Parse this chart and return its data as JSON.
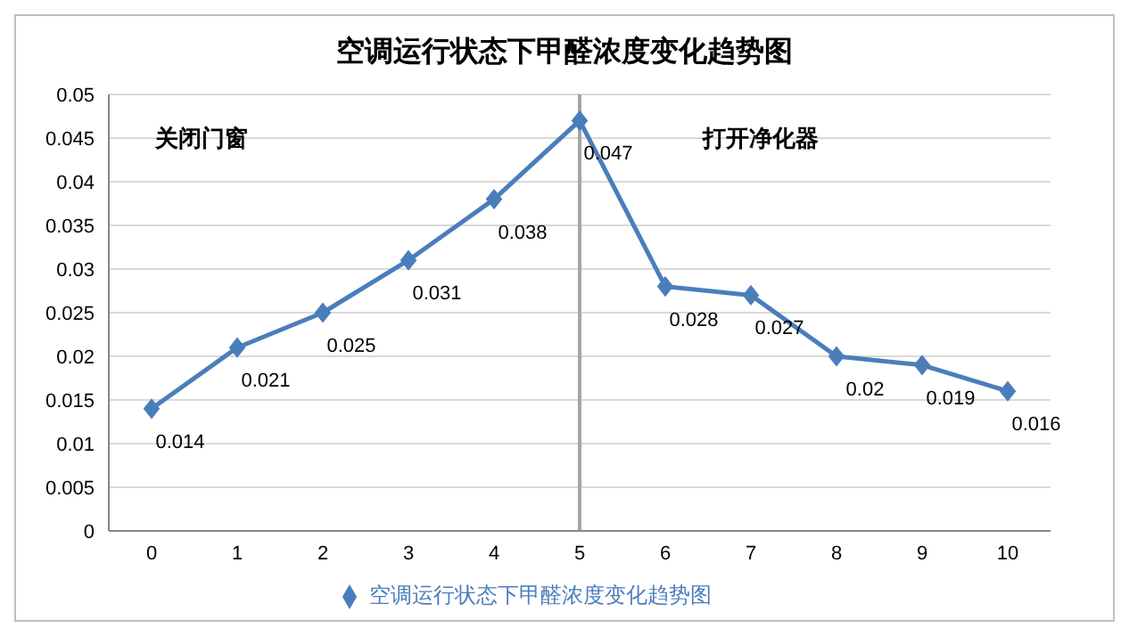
{
  "chart_data": {
    "type": "line",
    "title": "空调运行状态下甲醛浓度变化趋势图",
    "categories": [
      "0",
      "1",
      "2",
      "3",
      "4",
      "5",
      "6",
      "7",
      "8",
      "9",
      "10"
    ],
    "series": [
      {
        "name": "空调运行状态下甲醛浓度变化趋势图",
        "color": "#4a7ebb",
        "values": [
          0.014,
          0.021,
          0.025,
          0.031,
          0.038,
          0.047,
          0.028,
          0.027,
          0.02,
          0.019,
          0.016
        ]
      }
    ],
    "ylim": [
      0,
      0.05
    ],
    "yticks": [
      0,
      0.005,
      0.01,
      0.015,
      0.02,
      0.025,
      0.03,
      0.035,
      0.04,
      0.045,
      0.05
    ],
    "grid": "y",
    "legend": "bottom",
    "marker": "diamond",
    "data_labels": true,
    "ref_lines": [
      {
        "axis": "x",
        "value": "5",
        "color": "#a6a6a6"
      }
    ],
    "annotations": [
      "关闭门窗",
      "打开净化器"
    ]
  }
}
